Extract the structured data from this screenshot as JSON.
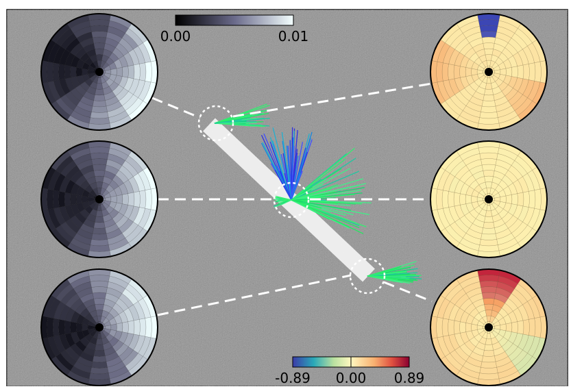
{
  "colorbars": {
    "top": {
      "ticks": [
        "0.00",
        "0.01"
      ]
    },
    "bottom": {
      "ticks": [
        "-0.89",
        "0.00",
        "0.89"
      ]
    }
  }
}
